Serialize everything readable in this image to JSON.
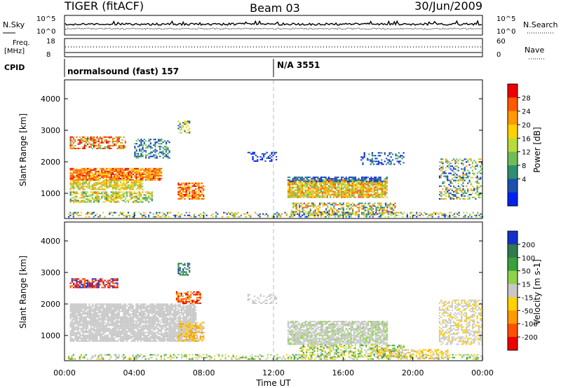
{
  "header": {
    "radar": "TIGER (fitACF)",
    "beam": "Beam 03",
    "date": "30/Jun/2009"
  },
  "top_panels": {
    "nsky_label": "N.Sky",
    "nsky_ticks": [
      "10^5",
      "10^0"
    ],
    "nsearch_label": "N.Search",
    "nsearch_ticks": [
      "10^5",
      "10^0"
    ],
    "freq_label_1": "Freq.",
    "freq_label_2": "[MHz]",
    "freq_ticks": [
      "18",
      "8"
    ],
    "nave_label": "Nave",
    "nave_ticks": [
      "60",
      "0"
    ],
    "cpid_label": "CPID",
    "cpid_segments": [
      "normalsound (fast) 157",
      "N/A 3551"
    ]
  },
  "chart_data": [
    {
      "type": "heatmap",
      "name": "power",
      "ylabel": "Slant Range [km]",
      "xlabel": "",
      "x_ticks": [
        "00:00",
        "04:00",
        "08:00",
        "12:00",
        "16:00",
        "20:00",
        "00:00"
      ],
      "y_ticks": [
        "1000",
        "2000",
        "3000",
        "4000"
      ],
      "ylim": [
        200,
        4600
      ],
      "xlim_hours": [
        0,
        24
      ],
      "colorbar": {
        "label": "Power [dB]",
        "ticks": [
          "28",
          "24",
          "20",
          "16",
          "12",
          "8",
          "4"
        ],
        "colors": [
          "#ee0000",
          "#ff5a00",
          "#ff9a00",
          "#ffd200",
          "#bada3a",
          "#6fbd58",
          "#2e8f6e",
          "#1d4fae",
          "#0022ee"
        ]
      }
    },
    {
      "type": "heatmap",
      "name": "velocity",
      "ylabel": "Slant Range [km]",
      "xlabel": "Time UT",
      "x_ticks": [
        "00:00",
        "04:00",
        "08:00",
        "12:00",
        "16:00",
        "20:00",
        "00:00"
      ],
      "y_ticks": [
        "1000",
        "2000",
        "3000",
        "4000"
      ],
      "ylim": [
        200,
        4600
      ],
      "xlim_hours": [
        0,
        24
      ],
      "colorbar": {
        "label": "Velocity [m s-1]",
        "ticks": [
          "200",
          "100",
          "50",
          "15",
          "-15",
          "-50",
          "-100",
          "-200"
        ],
        "colors": [
          "#1530c8",
          "#2f7b4a",
          "#3aa03a",
          "#8ed24b",
          "#c8c8c8",
          "#ffd200",
          "#ff9a00",
          "#ff5000",
          "#ee0000"
        ]
      }
    }
  ],
  "palette": {
    "ground_scatter": "#c8c8c8",
    "grid": "#bbbbbb"
  }
}
